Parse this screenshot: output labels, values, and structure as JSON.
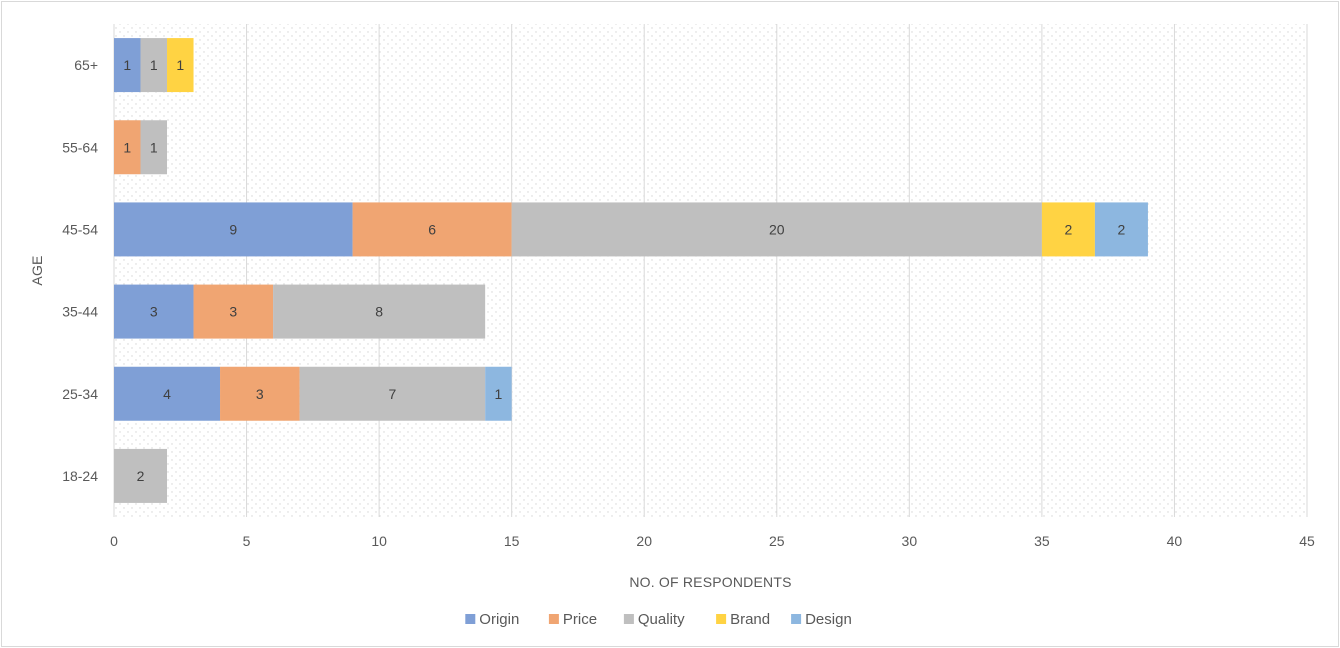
{
  "chart_data": {
    "type": "bar",
    "orientation": "horizontal",
    "stacked": true,
    "categories": [
      "18-24",
      "25-34",
      "35-44",
      "45-54",
      "55-64",
      "65+"
    ],
    "series": [
      {
        "name": "Origin",
        "color": "#7F9FD6",
        "values": [
          0,
          4,
          3,
          9,
          0,
          1
        ]
      },
      {
        "name": "Price",
        "color": "#F0A572",
        "values": [
          0,
          3,
          3,
          6,
          1,
          0
        ]
      },
      {
        "name": "Quality",
        "color": "#BFBFBF",
        "values": [
          2,
          7,
          8,
          20,
          1,
          1
        ]
      },
      {
        "name": "Brand",
        "color": "#FFD343",
        "values": [
          0,
          0,
          0,
          2,
          0,
          1
        ]
      },
      {
        "name": "Design",
        "color": "#8DB7E0",
        "values": [
          0,
          1,
          0,
          2,
          0,
          0
        ]
      }
    ],
    "xlabel": "NO. OF RESPONDENTS",
    "ylabel": "AGE",
    "xlim": [
      0,
      45
    ],
    "xticks": [
      "0",
      "5",
      "10",
      "15",
      "20",
      "25",
      "30",
      "35",
      "40",
      "45"
    ],
    "grid": "vertical",
    "legend": "bottom",
    "data_labels": true
  }
}
